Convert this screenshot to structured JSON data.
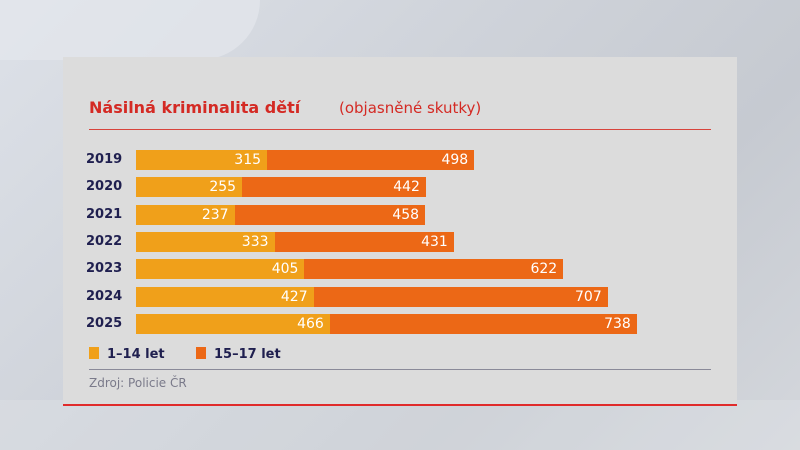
{
  "chart_data": {
    "type": "bar",
    "orientation": "horizontal",
    "stacked": true,
    "title": "Násilná kriminalita dětí",
    "subtitle": "(objasněné skutky)",
    "categories": [
      "2019",
      "2020",
      "2021",
      "2022",
      "2023",
      "2024",
      "2025"
    ],
    "series": [
      {
        "name": "1–14 let",
        "color": "#f0a01a",
        "values": [
          315,
          255,
          237,
          333,
          405,
          427,
          466
        ]
      },
      {
        "name": "15–17 let",
        "color": "#ec6816",
        "values": [
          498,
          442,
          458,
          431,
          622,
          707,
          738
        ]
      }
    ],
    "xlabel": "",
    "ylabel": "",
    "grid": false,
    "legend_position": "bottom",
    "source": "Zdroj: Policie ČR"
  },
  "header": {
    "title": "Násilná kriminalita dětí",
    "subtitle": "(objasněné skutky)"
  },
  "rows": [
    {
      "year": "2019",
      "a": "315",
      "b": "498"
    },
    {
      "year": "2020",
      "a": "255",
      "b": "442"
    },
    {
      "year": "2021",
      "a": "237",
      "b": "458"
    },
    {
      "year": "2022",
      "a": "333",
      "b": "431"
    },
    {
      "year": "2023",
      "a": "405",
      "b": "622"
    },
    {
      "year": "2024",
      "a": "427",
      "b": "707"
    },
    {
      "year": "2025",
      "a": "466",
      "b": "738"
    }
  ],
  "legend": {
    "a": "1–14 let",
    "b": "15–17 let"
  },
  "source": "Zdroj: Policie ČR",
  "colors": {
    "series_a": "#f0a01a",
    "series_b": "#ec6816",
    "title": "#d42a24",
    "accent_line": "#e02b2b"
  }
}
